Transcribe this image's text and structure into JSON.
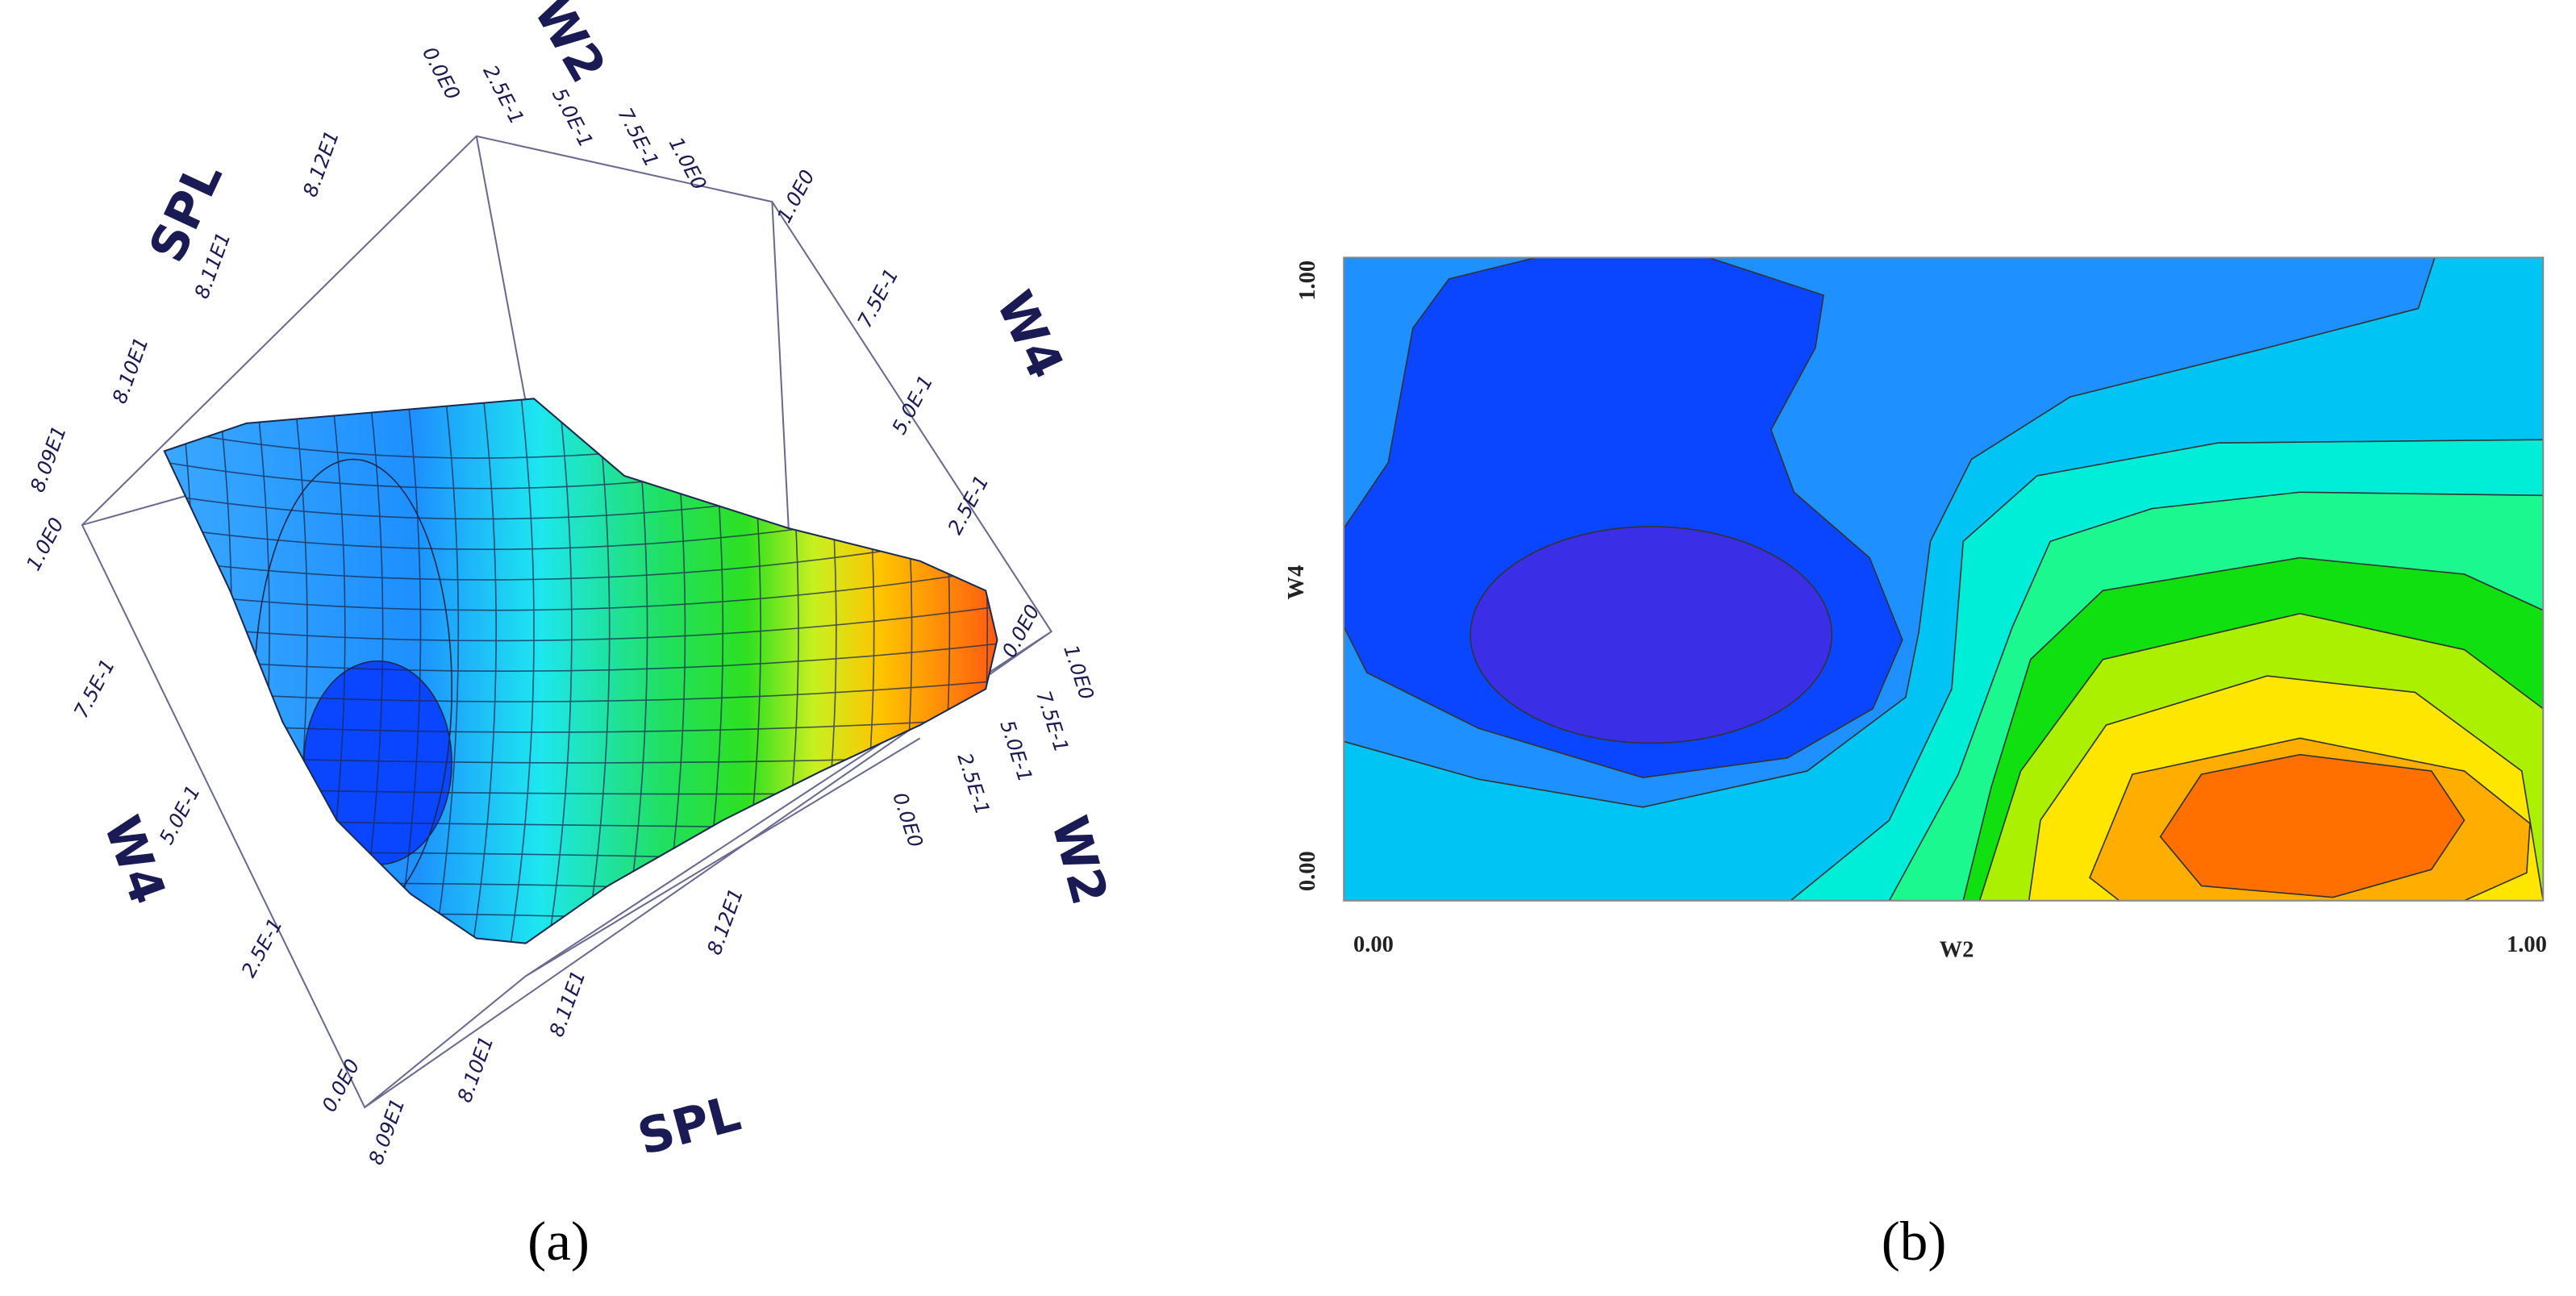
{
  "chart_data": [
    {
      "type": "surface",
      "label": "(a)",
      "x_label": "W2",
      "y_label": "W4",
      "z_label": "SPL",
      "xlim": [
        0,
        1
      ],
      "ylim": [
        0,
        1
      ],
      "zlim": [
        80.9,
        81.25
      ],
      "xticks": [
        {
          "value": 0,
          "label": "0.0E0"
        },
        {
          "value": 0.25,
          "label": "2.5E-1"
        },
        {
          "value": 0.5,
          "label": "5.0E-1"
        },
        {
          "value": 0.75,
          "label": "7.5E-1"
        },
        {
          "value": 1,
          "label": "1.0E0"
        }
      ],
      "yticks": [
        {
          "value": 0,
          "label": "0.0E0"
        },
        {
          "value": 0.25,
          "label": "2.5E-1"
        },
        {
          "value": 0.5,
          "label": "5.0E-1"
        },
        {
          "value": 0.75,
          "label": "7.5E-1"
        },
        {
          "value": 1,
          "label": "1.0E0"
        }
      ],
      "zticks": [
        {
          "value": 80.9,
          "label": "8.09E1"
        },
        {
          "value": 81.0,
          "label": "8.10E1"
        },
        {
          "value": 81.1,
          "label": "8.11E1"
        },
        {
          "value": 81.2,
          "label": "8.12E1"
        }
      ]
    },
    {
      "type": "contour",
      "label": "(b)",
      "x_label": "W2",
      "y_label": "W4",
      "xlim": [
        0,
        1
      ],
      "ylim": [
        0,
        1
      ],
      "xticks": [
        {
          "value": 0,
          "label": "0.00"
        },
        {
          "value": 1,
          "label": "1.00"
        }
      ],
      "yticks": [
        {
          "value": 0,
          "label": "0.00"
        },
        {
          "value": 1,
          "label": "1.00"
        }
      ]
    }
  ]
}
